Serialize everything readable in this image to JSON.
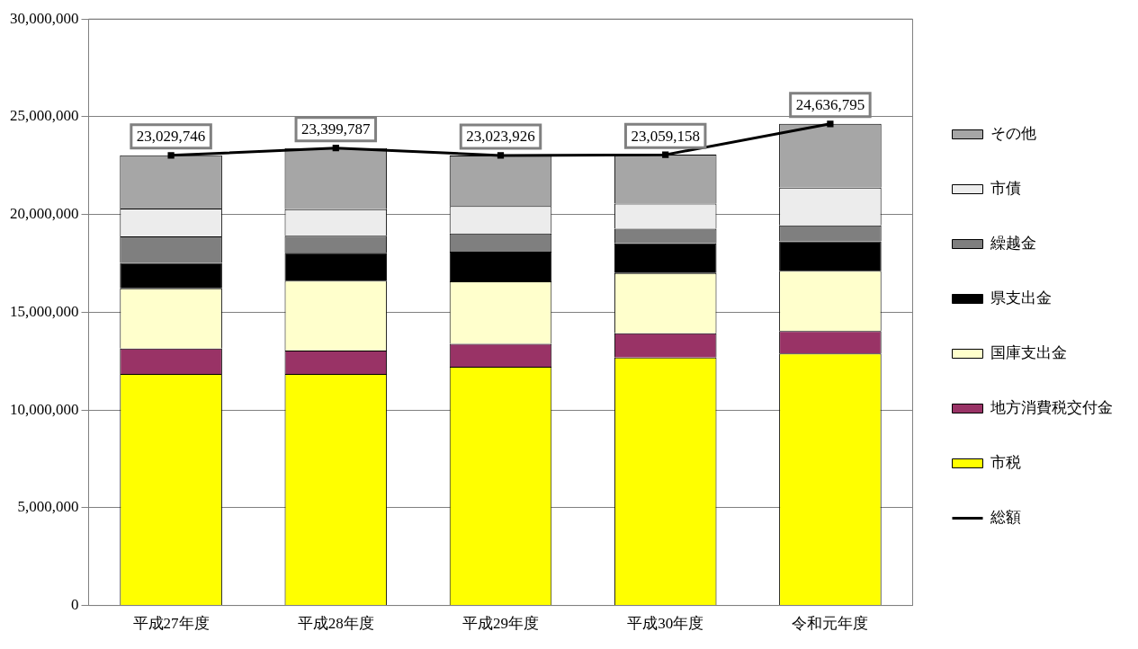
{
  "chart_data": {
    "type": "bar",
    "stacked": true,
    "categories": [
      "平成27年度",
      "平成28年度",
      "平成29年度",
      "平成30年度",
      "令和元年度"
    ],
    "series": [
      {
        "name": "市税",
        "color": "#ffff00",
        "values": [
          11840000,
          11850000,
          12210000,
          12680000,
          12890000
        ]
      },
      {
        "name": "地方消費税交付金",
        "color": "#993366",
        "values": [
          1300000,
          1190000,
          1180000,
          1250000,
          1150000
        ]
      },
      {
        "name": "国庫支出金",
        "color": "#ffffcc",
        "values": [
          3090000,
          3580000,
          3190000,
          3080000,
          3080000
        ]
      },
      {
        "name": "県支出金",
        "color": "#000000",
        "values": [
          1300000,
          1420000,
          1520000,
          1520000,
          1510000
        ]
      },
      {
        "name": "繰越金",
        "color": "#7f7f7f",
        "values": [
          1350000,
          880000,
          930000,
          740000,
          810000
        ]
      },
      {
        "name": "市債",
        "color": "#ececec",
        "values": [
          1430000,
          1350000,
          1400000,
          1290000,
          1940000
        ]
      },
      {
        "name": "その他",
        "color": "#a6a6a6",
        "values": [
          2720000,
          3130000,
          2590000,
          2500000,
          3260000
        ]
      },
      {
        "name": "総額",
        "type": "line",
        "color": "#000000",
        "marker": "square",
        "values": [
          23029746,
          23399787,
          23023926,
          23059158,
          24636795
        ],
        "value_labels": [
          "23,029,746",
          "23,399,787",
          "23,023,926",
          "23,059,158",
          "24,636,795"
        ]
      }
    ],
    "ylim": [
      0,
      30000000
    ],
    "yticks": [
      0,
      {
        "value": 5000000,
        "label": "5,000,000"
      },
      {
        "value": 10000000,
        "label": "10,000,000"
      },
      {
        "value": 15000000,
        "label": "15,000,000"
      },
      {
        "value": 20000000,
        "label": "20,000,000"
      },
      {
        "value": 25000000,
        "label": "25,000,000"
      },
      {
        "value": 30000000,
        "label": "30,000,000"
      }
    ],
    "grid": "y",
    "legend": "right"
  }
}
